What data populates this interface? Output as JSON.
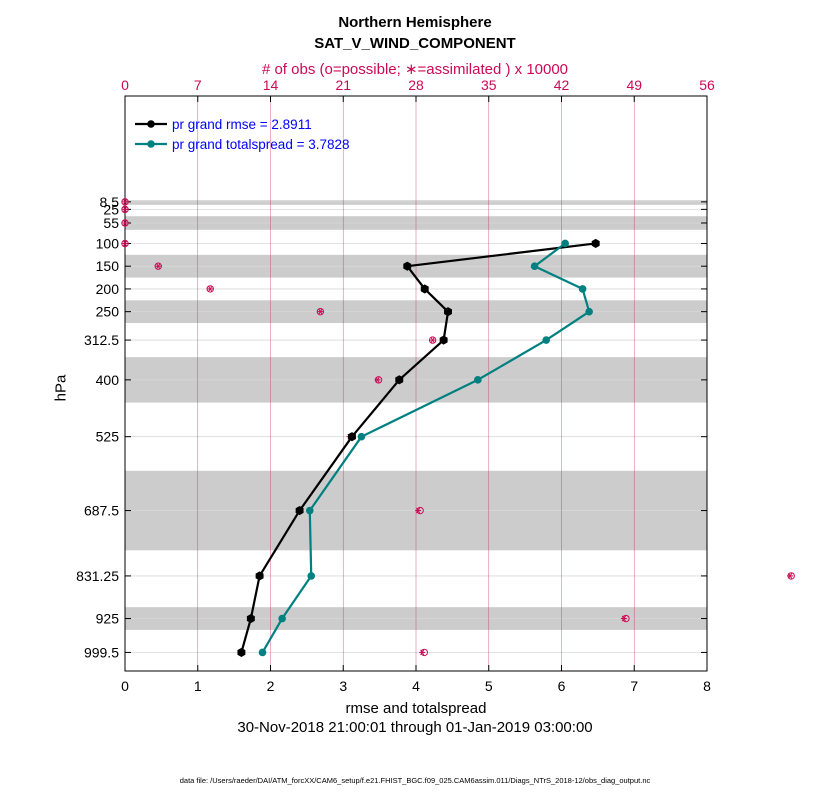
{
  "title": "Northern Hemisphere",
  "subtitle": "SAT_V_WIND_COMPONENT",
  "top_axis_label": "# of obs (o=possible; ∗=assimilated ) x 10000",
  "xlabel": "rmse and totalspread",
  "ylabel": "hPa",
  "date_range": "30-Nov-2018 21:00:01 through 01-Jan-2019 03:00:00",
  "data_file": "data file: /Users/raeder/DAI/ATM_forcXX/CAM6_setup/f.e21.FHIST_BGC.f09_025.CAM6assim.011/Diags_NTrS_2018-12/obs_diag_output.nc",
  "colors": {
    "rmse": "#000000",
    "spread": "#008080",
    "obs": "#cc0a55",
    "band": "#cccccc",
    "text_legend": "#0000ff"
  },
  "chart_data": {
    "type": "line",
    "x_range": [
      0,
      8
    ],
    "x_ticks": [
      0,
      1,
      2,
      3,
      4,
      5,
      6,
      7,
      8
    ],
    "top_x_range": [
      0,
      56
    ],
    "top_x_ticks": [
      0,
      7,
      14,
      21,
      28,
      35,
      42,
      49,
      56
    ],
    "levels": [
      8.5,
      25,
      55,
      100,
      150,
      200,
      250,
      312.5,
      400,
      525,
      687.5,
      831.25,
      925,
      999.5
    ],
    "level_labels": [
      "8.5",
      "25",
      "55",
      "100",
      "150",
      "200",
      "250",
      "312.5",
      "400",
      "525",
      "687.5",
      "831.25",
      "925",
      "999.5"
    ],
    "bands": [
      [
        5,
        15
      ],
      [
        40,
        70
      ],
      [
        125,
        175
      ],
      [
        225,
        275
      ],
      [
        350,
        450
      ],
      [
        600,
        775
      ],
      [
        900,
        950
      ]
    ],
    "legend_position": "top-left",
    "series": [
      {
        "name": "pr grand rmse = 2.8911",
        "key": "rmse",
        "points": [
          {
            "p": 100,
            "x": 6.47
          },
          {
            "p": 150,
            "x": 3.88
          },
          {
            "p": 200,
            "x": 4.12
          },
          {
            "p": 250,
            "x": 4.44
          },
          {
            "p": 312.5,
            "x": 4.38
          },
          {
            "p": 400,
            "x": 3.77
          },
          {
            "p": 525,
            "x": 3.12
          },
          {
            "p": 687.5,
            "x": 2.4
          },
          {
            "p": 831.25,
            "x": 1.85
          },
          {
            "p": 925,
            "x": 1.73
          },
          {
            "p": 999.5,
            "x": 1.6
          }
        ]
      },
      {
        "name": "pr grand totalspread = 3.7828",
        "key": "spread",
        "points": [
          {
            "p": 100,
            "x": 6.05
          },
          {
            "p": 150,
            "x": 5.63
          },
          {
            "p": 200,
            "x": 6.29
          },
          {
            "p": 250,
            "x": 6.38
          },
          {
            "p": 312.5,
            "x": 5.79
          },
          {
            "p": 400,
            "x": 4.85
          },
          {
            "p": 525,
            "x": 3.25
          },
          {
            "p": 687.5,
            "x": 2.54
          },
          {
            "p": 831.25,
            "x": 2.56
          },
          {
            "p": 925,
            "x": 2.16
          },
          {
            "p": 999.5,
            "x": 1.89
          }
        ]
      }
    ],
    "obs_counts_x10000": [
      {
        "p": 8.5,
        "possible": 0.0,
        "assimilated": 0.0
      },
      {
        "p": 25,
        "possible": 0.0,
        "assimilated": 0.0
      },
      {
        "p": 55,
        "possible": 0.0,
        "assimilated": 0.0
      },
      {
        "p": 100,
        "possible": 0.0,
        "assimilated": 0.0
      },
      {
        "p": 150,
        "possible": 3.2,
        "assimilated": 3.2
      },
      {
        "p": 200,
        "possible": 8.2,
        "assimilated": 8.2
      },
      {
        "p": 250,
        "possible": 18.8,
        "assimilated": 18.8
      },
      {
        "p": 312.5,
        "possible": 29.6,
        "assimilated": 29.6
      },
      {
        "p": 400,
        "possible": 24.4,
        "assimilated": 24.3
      },
      {
        "p": 525,
        "possible": 21.8,
        "assimilated": 21.6
      },
      {
        "p": 687.5,
        "possible": 28.4,
        "assimilated": 28.2
      },
      {
        "p": 831.25,
        "possible": 64.1,
        "assimilated": 64.0
      },
      {
        "p": 925,
        "possible": 48.2,
        "assimilated": 48.0
      },
      {
        "p": 999.5,
        "possible": 28.8,
        "assimilated": 28.6
      }
    ]
  }
}
